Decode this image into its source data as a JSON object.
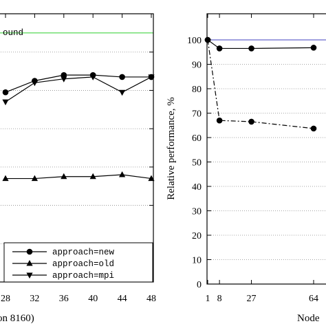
{
  "chart_data": [
    {
      "type": "line",
      "title": "",
      "xlabel_visible": "on 8160)",
      "ylabel": "",
      "ylim": [
        0,
        140
      ],
      "x_ticks": [
        "28",
        "32",
        "36",
        "40",
        "44",
        "48"
      ],
      "x": [
        28,
        32,
        36,
        40,
        44,
        48
      ],
      "grid": "horizontal dotted",
      "legend_placement": "bottom-right",
      "reference_label": "ound",
      "reference_value": 130,
      "reference_color": "#66dd66",
      "series": [
        {
          "name": "approach=new",
          "marker": "circle",
          "dash": "solid",
          "values": [
            99,
            105,
            108,
            108,
            107,
            107
          ]
        },
        {
          "name": "approach=old",
          "marker": "triangle-up",
          "dash": "solid",
          "values": [
            54,
            54,
            55,
            55,
            56,
            54
          ]
        },
        {
          "name": "approach=mpi",
          "marker": "triangle-down",
          "dash": "solid",
          "values": [
            94,
            104,
            106,
            107,
            99,
            107
          ]
        }
      ]
    },
    {
      "type": "line",
      "title": "",
      "xlabel_visible": "Node",
      "ylabel": "Relative performance, %",
      "ylim": [
        0,
        100
      ],
      "y_ticks": [
        "0",
        "10",
        "20",
        "30",
        "40",
        "50",
        "60",
        "70",
        "80",
        "90",
        "100"
      ],
      "x_ticks": [
        "1",
        "8",
        "27",
        "64"
      ],
      "x": [
        1,
        8,
        27,
        64
      ],
      "grid": "horizontal dotted",
      "reference_value": 100,
      "reference_color": "#6666cc",
      "series": [
        {
          "marker": "circle",
          "dash": "solid",
          "values": [
            100,
            96.5,
            96.5,
            96.8
          ]
        },
        {
          "marker": "circle",
          "dash": "dash-dot",
          "values": [
            100,
            67,
            66.5,
            63.7
          ]
        }
      ]
    }
  ]
}
